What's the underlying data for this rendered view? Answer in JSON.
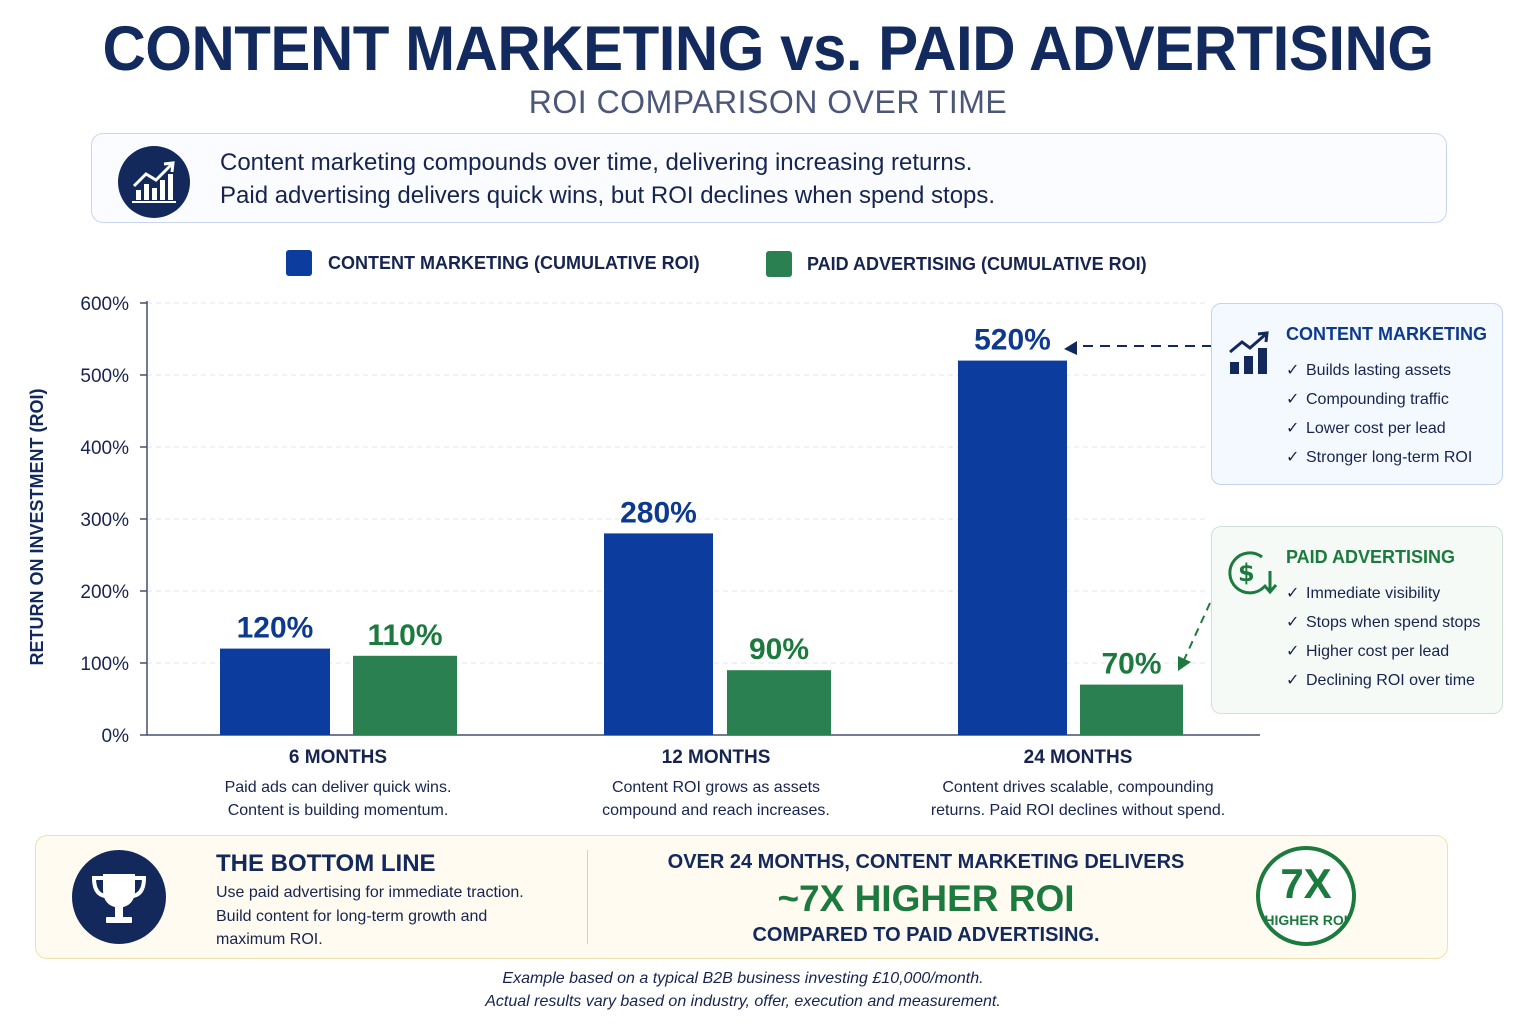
{
  "title": "CONTENT MARKETING vs. PAID ADVERTISING",
  "subtitle": "ROI COMPARISON OVER TIME",
  "intro": {
    "icon": "chart-growth-icon",
    "line1": "Content marketing compounds over time, delivering increasing returns.",
    "line2": "Paid advertising delivers quick wins, but ROI declines when spend stops."
  },
  "colors": {
    "content": "#0b3c9e",
    "paid": "#2a8050",
    "navy": "#13295c",
    "green_text": "#1c7a3e"
  },
  "chart_data": {
    "type": "bar",
    "title": "",
    "xlabel": "",
    "ylabel": "RETURN ON INVESTMENT (ROI)",
    "ylim": [
      0,
      600
    ],
    "yticks": [
      0,
      100,
      200,
      300,
      400,
      500,
      600
    ],
    "ytick_labels": [
      "0%",
      "100%",
      "200%",
      "300%",
      "400%",
      "500%",
      "600%"
    ],
    "grid": true,
    "legend_position": "top",
    "categories": [
      "6 MONTHS",
      "12 MONTHS",
      "24 MONTHS"
    ],
    "category_notes": [
      [
        "Paid ads can deliver quick wins.",
        "Content is building momentum."
      ],
      [
        "Content ROI grows as assets",
        "compound and reach increases."
      ],
      [
        "Content drives scalable, compounding",
        "returns. Paid ROI declines without spend."
      ]
    ],
    "series": [
      {
        "name": "CONTENT MARKETING (CUMULATIVE ROI)",
        "values": [
          120,
          280,
          520
        ],
        "labels": [
          "120%",
          "280%",
          "520%"
        ],
        "color": "#0b3c9e",
        "label_color": "#0d3a8e"
      },
      {
        "name": "PAID ADVERTISING (CUMULATIVE ROI)",
        "values": [
          110,
          90,
          70
        ],
        "labels": [
          "110%",
          "90%",
          "70%"
        ],
        "color": "#2a8050",
        "label_color": "#1c7a3e"
      }
    ]
  },
  "panels": {
    "content": {
      "icon": "bar-chart-up-icon",
      "title": "CONTENT MARKETING",
      "items": [
        "Builds lasting assets",
        "Compounding traffic",
        "Lower cost per lead",
        "Stronger long-term ROI"
      ]
    },
    "paid": {
      "icon": "dollar-down-icon",
      "title": "PAID ADVERTISING",
      "items": [
        "Immediate visibility",
        "Stops when spend stops",
        "Higher cost per lead",
        "Declining ROI over time"
      ]
    }
  },
  "check_mark": "✓",
  "bottom": {
    "icon": "trophy-icon",
    "title": "THE BOTTOM LINE",
    "text": "Use paid advertising for immediate traction. Build content for long-term growth and maximum ROI.",
    "line1": "OVER 24 MONTHS, CONTENT MARKETING DELIVERS",
    "line2": "~7X HIGHER ROI",
    "line3": "COMPARED TO PAID ADVERTISING.",
    "badge_big": "7X",
    "badge_small": "HIGHER ROI"
  },
  "footnote": {
    "line1": "Example based on a typical B2B business investing £10,000/month.",
    "line2": "Actual results vary based on industry, offer, execution and measurement."
  }
}
